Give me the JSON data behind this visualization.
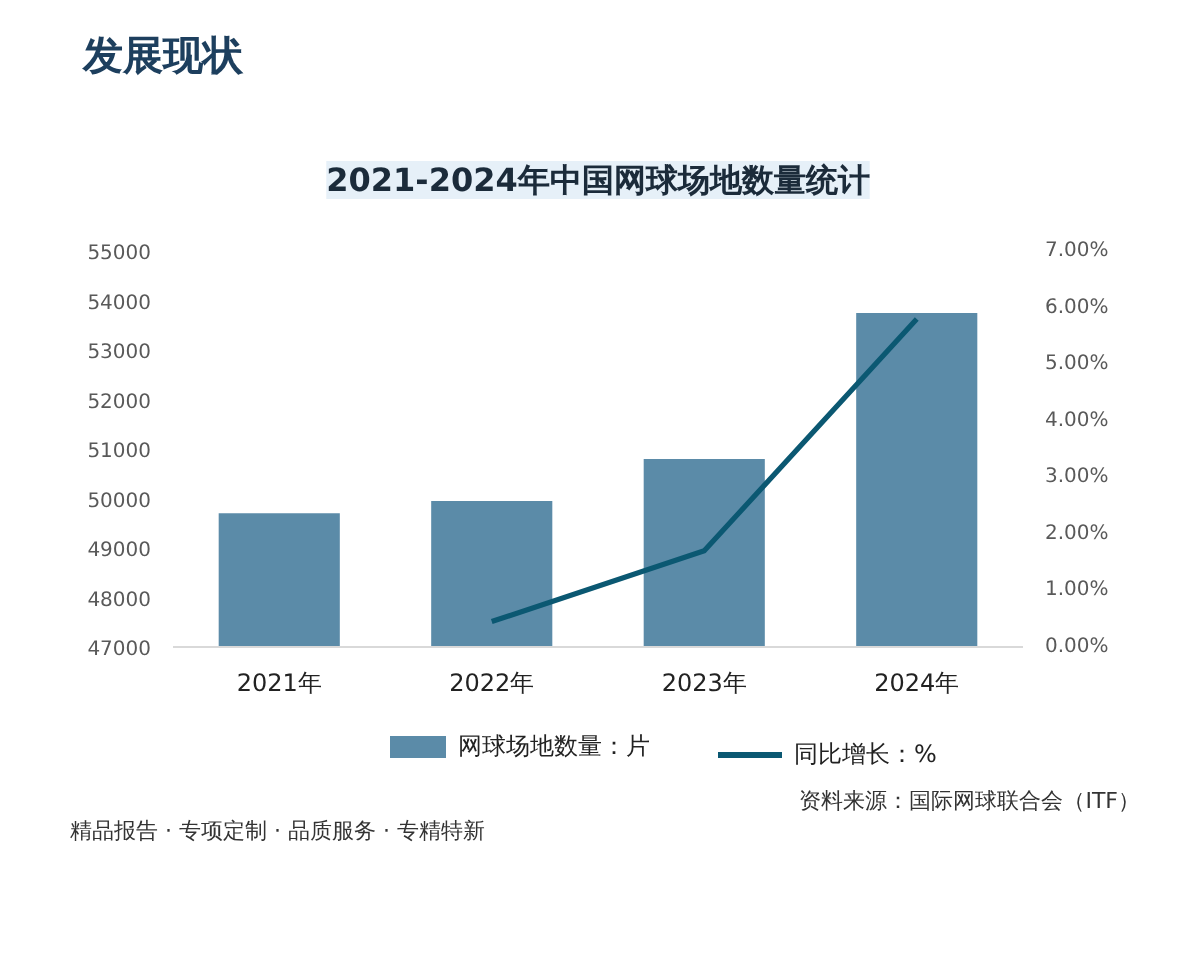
{
  "chart_data": {
    "type": "bar",
    "title": "2021-2024年中国网球场地数量统计",
    "subtitle": "发展现状",
    "categories": [
      "2021年",
      "2022年",
      "2023年",
      "2024年"
    ],
    "series": [
      {
        "name": "网球场地数量：片",
        "color": "#5b8ba8",
        "values": [
          49700,
          49950,
          50800,
          53750
        ]
      },
      {
        "name": "同比增长：%",
        "type": "line",
        "axis": "y2",
        "color": "#0b5872",
        "values": [
          null,
          0.45,
          1.7,
          5.8
        ]
      }
    ],
    "ylim": [
      47000,
      55000
    ],
    "yticks": [
      47000,
      48000,
      49000,
      50000,
      51000,
      52000,
      53000,
      54000,
      55000
    ],
    "y2lim": [
      0,
      7
    ],
    "y2ticks": [
      {
        "value": 0,
        "label": "0.00%"
      },
      {
        "value": 1,
        "label": "1.00%"
      },
      {
        "value": 2,
        "label": "2.00%"
      },
      {
        "value": 3,
        "label": "3.00%"
      },
      {
        "value": 4,
        "label": "4.00%"
      },
      {
        "value": 5,
        "label": "5.00%"
      },
      {
        "value": 6,
        "label": "6.00%"
      },
      {
        "value": 7,
        "label": "7.00%"
      }
    ],
    "grid": false,
    "legend": "bottom",
    "line_style": "solid",
    "annotations": [
      "资料来源：国际网球联合会（ITF）",
      "精品报告 · 专项定制 · 品质服务 · 专精特新"
    ]
  }
}
